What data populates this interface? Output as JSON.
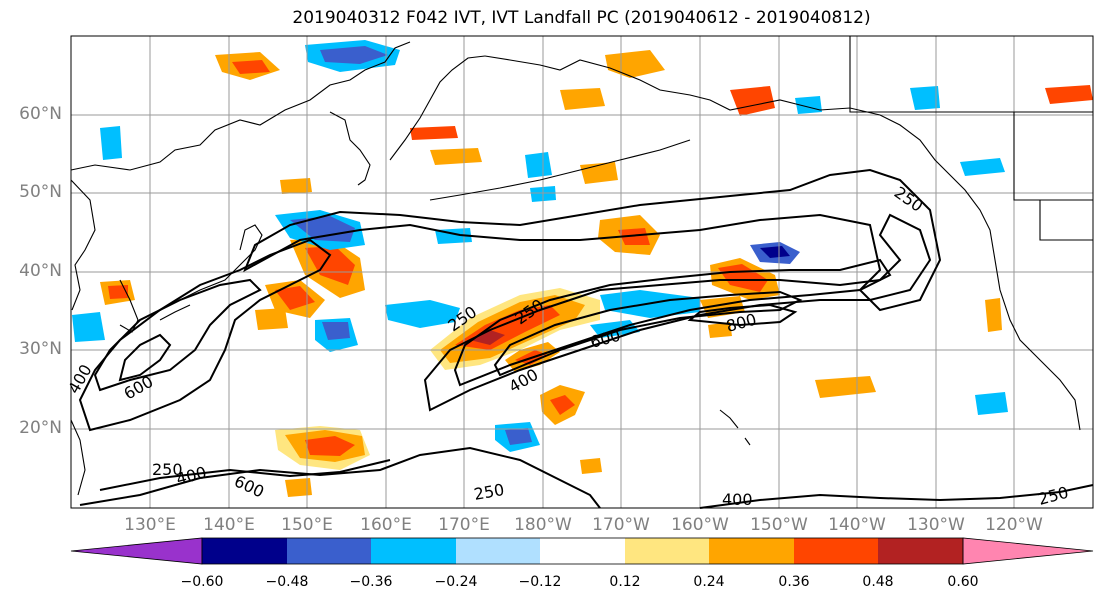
{
  "title": "2019040312 F042 IVT, IVT Landfall PC (2019040612 - 2019040812)",
  "lat_ticks": [
    "60°N",
    "50°N",
    "40°N",
    "30°N",
    "20°N"
  ],
  "lon_ticks": [
    "130°E",
    "140°E",
    "150°E",
    "160°E",
    "170°E",
    "180°W",
    "170°W",
    "160°W",
    "150°W",
    "140°W",
    "130°W",
    "120°W"
  ],
  "contour_labels": [
    "250",
    "250",
    "250",
    "250",
    "250",
    "250",
    "400",
    "400",
    "400",
    "400",
    "600",
    "600",
    "600",
    "800"
  ],
  "colorbar": {
    "labels": [
      "−0.60",
      "−0.48",
      "−0.36",
      "−0.24",
      "−0.12",
      "0.12",
      "0.24",
      "0.36",
      "0.48",
      "0.60"
    ],
    "colors": [
      "#9932cc",
      "#00008b",
      "#3a5fcd",
      "#00bfff",
      "#b0e0ff",
      "#ffffff",
      "#ffe680",
      "#ffa500",
      "#ff4500",
      "#b22222",
      "#ff85b0"
    ]
  },
  "field_colors": {
    "orange": "#ffa500",
    "red": "#ff4500",
    "darkred": "#b22222",
    "yellow": "#ffe680",
    "cyan": "#00bfff",
    "lightblue": "#b0e0ff",
    "blue": "#3a5fcd",
    "navy": "#00008b"
  }
}
